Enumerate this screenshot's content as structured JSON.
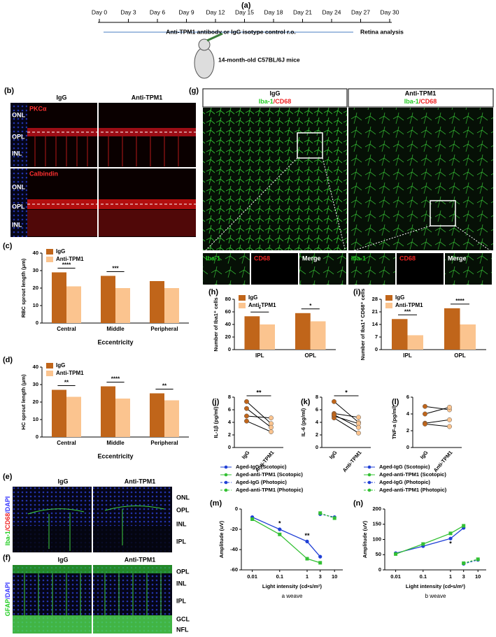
{
  "figure": {
    "a": {
      "label": "(a)",
      "days": [
        "Day 0",
        "Day 3",
        "Day 6",
        "Day 9",
        "Day 12",
        "Day 15",
        "Day 18",
        "Day 21",
        "Day 24",
        "Day 27",
        "Day 30"
      ],
      "treatment": "Anti-TPM1 antibody or IgG isotype control r.o.",
      "analysis": "Retina analysis",
      "mice": "14-month-old C57BL/6J mice"
    },
    "b": {
      "label": "(b)",
      "columns": [
        "IgG",
        "Anti-TPM1"
      ],
      "stains": [
        "PKCα",
        "Calbindin"
      ],
      "layers": [
        "ONL",
        "OPL",
        "INL"
      ]
    },
    "e": {
      "label": "(e)",
      "columns": [
        "IgG",
        "Anti-TPM1"
      ],
      "stain": [
        "Iba-1",
        "/CD68",
        "/DAPI"
      ],
      "layers": [
        "ONL",
        "OPL",
        "INL",
        "IPL"
      ]
    },
    "f": {
      "label": "(f)",
      "columns": [
        "IgG",
        "Anti-TPM1"
      ],
      "stain": [
        "GFAP",
        "/DAPI"
      ],
      "layers": [
        "OPL",
        "INL",
        "IPL",
        "GCL",
        "NFL"
      ]
    },
    "g": {
      "label": "(g)",
      "columns": [
        "IgG",
        "Anti-TPM1"
      ],
      "stain": [
        "Iba-1",
        "/CD68"
      ],
      "insets": [
        "Iba-1",
        "CD68",
        "Merge"
      ]
    }
  },
  "chart_data": [
    {
      "type": "bar",
      "label": "(c)",
      "ylabel": "RBC sprout length (μm)",
      "xlabel": "Eccentricity",
      "categories": [
        "Central",
        "Middle",
        "Peripheral"
      ],
      "series": [
        {
          "name": "IgG",
          "color": "#c0651a",
          "values": [
            29,
            27,
            24
          ]
        },
        {
          "name": "Anti-TPM1",
          "color": "#fbc48f",
          "values": [
            21,
            20,
            20
          ]
        }
      ],
      "annotations": [
        "****",
        "***",
        null
      ],
      "ylim": [
        0,
        40
      ],
      "yticks": [
        0,
        10,
        20,
        30,
        40
      ]
    },
    {
      "type": "bar",
      "label": "(d)",
      "ylabel": "HC sprout length (μm)",
      "xlabel": "Eccentricity",
      "categories": [
        "Central",
        "Middle",
        "Peripheral"
      ],
      "series": [
        {
          "name": "IgG",
          "color": "#c0651a",
          "values": [
            27,
            29,
            25
          ]
        },
        {
          "name": "Anti-TPM1",
          "color": "#fbc48f",
          "values": [
            23,
            22,
            21
          ]
        }
      ],
      "annotations": [
        "**",
        "****",
        "**"
      ],
      "ylim": [
        0,
        40
      ],
      "yticks": [
        0,
        10,
        20,
        30,
        40
      ]
    },
    {
      "type": "bar",
      "label": "(h)",
      "ylabel": "Number of Iba1⁺ cells",
      "categories": [
        "IPL",
        "OPL"
      ],
      "series": [
        {
          "name": "IgG",
          "color": "#c0651a",
          "values": [
            53,
            58
          ]
        },
        {
          "name": "Anti-TPM1",
          "color": "#fbc48f",
          "values": [
            40,
            45
          ]
        }
      ],
      "annotations": [
        "*",
        "*"
      ],
      "ylim": [
        0,
        80
      ],
      "yticks": [
        0,
        20,
        40,
        60,
        80
      ]
    },
    {
      "type": "bar",
      "label": "(i)",
      "ylabel": "Number of Iba1⁺ CD68⁺ cells",
      "categories": [
        "IPL",
        "OPL"
      ],
      "series": [
        {
          "name": "IgG",
          "color": "#c0651a",
          "values": [
            17,
            23
          ]
        },
        {
          "name": "Anti-TPM1",
          "color": "#fbc48f",
          "values": [
            8,
            14
          ]
        }
      ],
      "annotations": [
        "***",
        "****"
      ],
      "ylim": [
        0,
        28
      ],
      "yticks": [
        0,
        7,
        14,
        21,
        28
      ]
    },
    {
      "type": "slope",
      "label": "(j)",
      "ylabel": "IL-1β (pg/ml)",
      "categories": [
        "IgG",
        "Anti-TPM1"
      ],
      "colors": [
        "#c0651a",
        "#fbc48f"
      ],
      "pairs": [
        [
          7.3,
          3.8
        ],
        [
          6.2,
          3.2
        ],
        [
          5.0,
          4.7
        ],
        [
          4.2,
          2.5
        ]
      ],
      "annotation": "**",
      "ylim": [
        0,
        8
      ],
      "yticks": [
        0,
        2,
        4,
        6,
        8
      ]
    },
    {
      "type": "slope",
      "label": "(k)",
      "ylabel": "IL-6 (pg/ml)",
      "categories": [
        "IgG",
        "Anti-TPM1"
      ],
      "colors": [
        "#c0651a",
        "#fbc48f"
      ],
      "pairs": [
        [
          7.3,
          4.0
        ],
        [
          5.4,
          4.8
        ],
        [
          5.0,
          3.8
        ],
        [
          4.7,
          2.3
        ],
        [
          5.2,
          3.2
        ]
      ],
      "annotation": "*",
      "ylim": [
        0,
        8
      ],
      "yticks": [
        0,
        2,
        4,
        6,
        8
      ]
    },
    {
      "type": "slope",
      "label": "(l)",
      "ylabel": "TNF-a (pg/ml)",
      "categories": [
        "IgG",
        "Anti-TPM1"
      ],
      "colors": [
        "#c0651a",
        "#fbc48f"
      ],
      "pairs": [
        [
          4.9,
          4.5
        ],
        [
          4.0,
          4.8
        ],
        [
          2.9,
          3.3
        ],
        [
          2.8,
          2.5
        ]
      ],
      "ylim": [
        0,
        6
      ],
      "yticks": [
        0,
        2,
        4,
        6
      ]
    },
    {
      "type": "line",
      "label": "(m)",
      "ylabel": "Amplitude (uV)",
      "xlabel": "Light intensity (cd•s/m²)",
      "subtitle": "a weave",
      "xlog": true,
      "series": [
        {
          "name": "Aged-IgG (Scotopic)",
          "color": "#1f3fd6",
          "marker": "circle",
          "dashed": false,
          "x": [
            0.01,
            0.1,
            1,
            3
          ],
          "values": [
            -8,
            -20,
            -32,
            -47
          ]
        },
        {
          "name": "Aged-anti-TPM1 (Scotopic)",
          "color": "#33c033",
          "marker": "square",
          "dashed": false,
          "x": [
            0.01,
            0.1,
            1,
            3
          ],
          "values": [
            -10,
            -25,
            -49,
            -53
          ]
        },
        {
          "name": "Aged-IgG (Photopic)",
          "color": "#1f3fd6",
          "marker": "circle",
          "dashed": true,
          "x": [
            3,
            10
          ],
          "values": [
            -5,
            -8
          ]
        },
        {
          "name": "Aged-anti-TPM1 (Photopic)",
          "color": "#33c033",
          "marker": "square",
          "dashed": true,
          "x": [
            3,
            10
          ],
          "values": [
            -4,
            -9
          ]
        }
      ],
      "annotations": [
        {
          "x": 0.1,
          "text": "*"
        },
        {
          "x": 1,
          "text": "**"
        }
      ],
      "xlim": [
        0.004,
        20
      ],
      "xticks": [
        0.01,
        0.1,
        1,
        3,
        10
      ],
      "ylim": [
        -60,
        0
      ],
      "yticks": [
        -60,
        -40,
        -20,
        0
      ]
    },
    {
      "type": "line",
      "label": "(n)",
      "ylabel": "Amplitude (uV)",
      "xlabel": "Light intensity (cd•s/m²)",
      "subtitle": "b weave",
      "xlog": true,
      "series": [
        {
          "name": "Aged-IgG (Scotopic)",
          "color": "#1f3fd6",
          "marker": "circle",
          "dashed": false,
          "x": [
            0.01,
            0.1,
            1,
            3
          ],
          "values": [
            55,
            78,
            103,
            138
          ]
        },
        {
          "name": "Aged-anti-TPM1 (Scotopic)",
          "color": "#33c033",
          "marker": "square",
          "dashed": false,
          "x": [
            0.01,
            0.1,
            1,
            3
          ],
          "values": [
            52,
            85,
            120,
            145
          ]
        },
        {
          "name": "Aged-IgG (Photopic)",
          "color": "#1f3fd6",
          "marker": "circle",
          "dashed": true,
          "x": [
            3,
            10
          ],
          "values": [
            20,
            33
          ]
        },
        {
          "name": "Aged-anti-TPM1 (Photopic)",
          "color": "#33c033",
          "marker": "square",
          "dashed": true,
          "x": [
            3,
            10
          ],
          "values": [
            22,
            35
          ]
        }
      ],
      "annotations": [
        {
          "x": 1,
          "text": "*"
        }
      ],
      "xlim": [
        0.004,
        20
      ],
      "xticks": [
        0.01,
        0.1,
        1,
        3,
        10
      ],
      "ylim": [
        0,
        200
      ],
      "yticks": [
        0,
        50,
        100,
        150,
        200
      ]
    }
  ]
}
